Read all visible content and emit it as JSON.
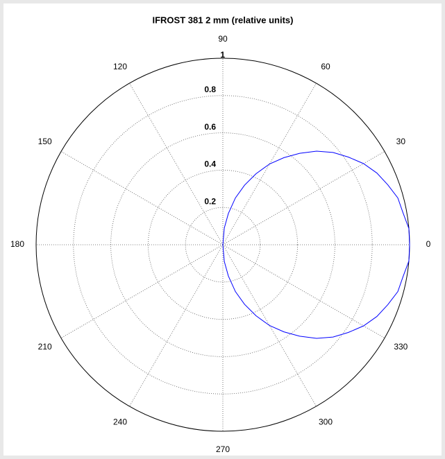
{
  "chart_data": {
    "type": "polar",
    "title": "IFROST 381 2 mm (relative units)",
    "theta": [
      -90,
      -85,
      -80,
      -75,
      -70,
      -65,
      -60,
      -55,
      -50,
      -45,
      -40,
      -35,
      -30,
      -25,
      -20,
      -15,
      -10,
      -5,
      0,
      5,
      10,
      15,
      20,
      25,
      30,
      35,
      40,
      45,
      50,
      55,
      60,
      65,
      70,
      75,
      80,
      85,
      90
    ],
    "r": [
      0,
      0.09,
      0.17,
      0.26,
      0.34,
      0.42,
      0.5,
      0.57,
      0.64,
      0.71,
      0.77,
      0.82,
      0.87,
      0.91,
      0.94,
      0.97,
      0.98,
      1,
      1,
      1,
      0.98,
      0.97,
      0.94,
      0.91,
      0.87,
      0.82,
      0.77,
      0.71,
      0.64,
      0.57,
      0.5,
      0.42,
      0.34,
      0.26,
      0.17,
      0.09,
      0
    ],
    "color": "#0000ff",
    "rlim": [
      0,
      1
    ],
    "rticks": [
      0.2,
      0.4,
      0.6,
      0.8,
      1
    ],
    "thetaticks": [
      0,
      30,
      60,
      90,
      120,
      150,
      180,
      210,
      240,
      270,
      300,
      330
    ]
  }
}
